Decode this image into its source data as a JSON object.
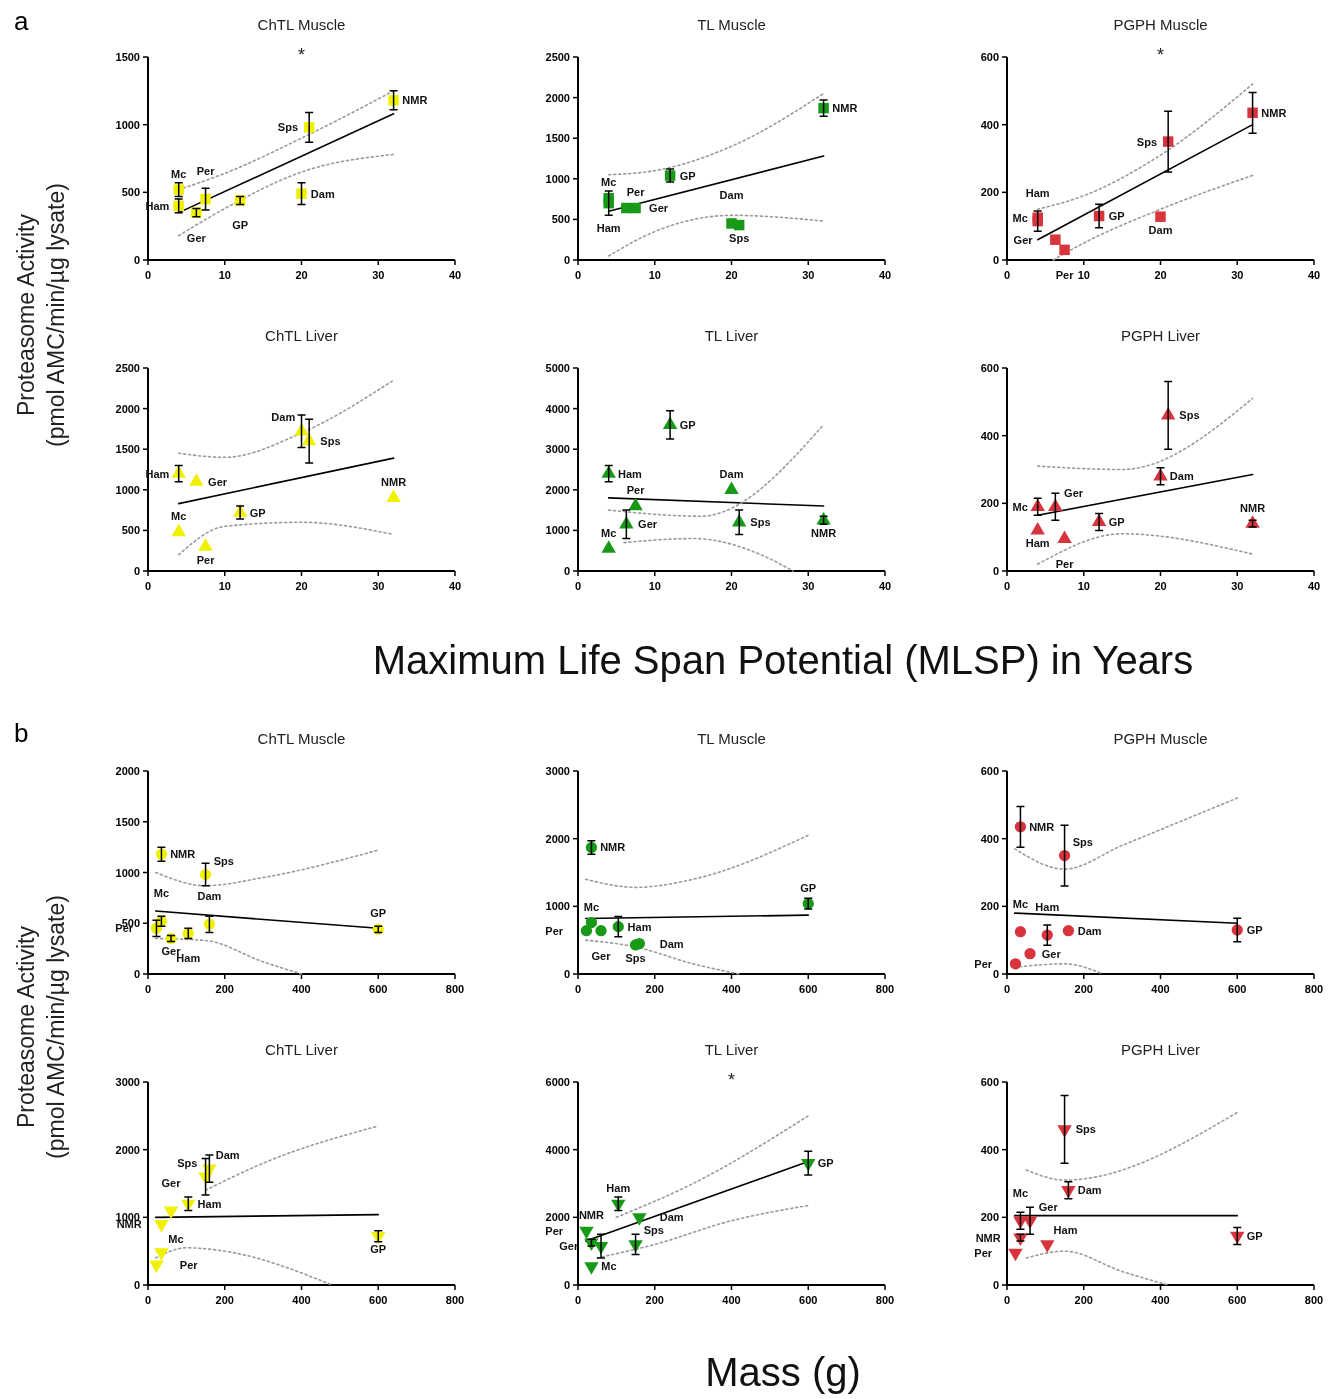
{
  "chart_data": [
    {
      "type": "other",
      "title": "a",
      "ylabel": "Proteasome Activity\n(pmol AMC/min/µg lysate)",
      "xlabel": "Maximum Life Span Potential (MLSP) in Years"
    },
    {
      "type": "scatter",
      "title": "ChTL Muscle",
      "xlim": [
        0,
        40
      ],
      "xticks": [
        0,
        10,
        20,
        30,
        40
      ],
      "ylim": [
        0,
        1500
      ],
      "yticks": [
        0,
        500,
        1000,
        1500
      ],
      "series": [
        {
          "type": "scatter",
          "marker": "square",
          "color": "#f0f000",
          "x": [
            4,
            4,
            6.3,
            7.5,
            12,
            20,
            21,
            32
          ],
          "values": [
            520,
            400,
            350,
            450,
            440,
            490,
            980,
            1180
          ],
          "errors": [
            50,
            50,
            30,
            80,
            30,
            80,
            110,
            70
          ]
        },
        {
          "type": "line",
          "color": "#000000",
          "line_style": "solid",
          "x": [
            4,
            32
          ],
          "values": [
            350,
            1080
          ]
        },
        {
          "type": "line",
          "color": "#9a9a9a",
          "line_style": "dotted",
          "x": [
            4,
            10,
            20,
            32
          ],
          "values": [
            520,
            640,
            900,
            1250
          ]
        },
        {
          "type": "line",
          "color": "#9a9a9a",
          "line_style": "dotted",
          "x": [
            4,
            10,
            20,
            32
          ],
          "values": [
            180,
            380,
            650,
            780
          ]
        }
      ],
      "annotations": [
        "*",
        {
          "text": "Mc",
          "x": 4,
          "y": 520
        },
        {
          "text": "Ham",
          "x": 4,
          "y": 400
        },
        {
          "text": "Ger",
          "x": 6.3,
          "y": 350
        },
        {
          "text": "Per",
          "x": 7.5,
          "y": 450
        },
        {
          "text": "GP",
          "x": 12,
          "y": 440
        },
        {
          "text": "Dam",
          "x": 20,
          "y": 490
        },
        {
          "text": "Sps",
          "x": 21,
          "y": 980
        },
        {
          "text": "NMR",
          "x": 32,
          "y": 1180
        }
      ]
    },
    {
      "type": "scatter",
      "title": "TL Muscle",
      "xlim": [
        0,
        40
      ],
      "xticks": [
        0,
        10,
        20,
        30,
        40
      ],
      "ylim": [
        0,
        2500
      ],
      "yticks": [
        0,
        500,
        1000,
        1500,
        2000,
        2500
      ],
      "series": [
        {
          "type": "scatter",
          "marker": "square",
          "color": "#189a18",
          "x": [
            4,
            4,
            6.3,
            7.5,
            12,
            20,
            21,
            32
          ],
          "values": [
            760,
            700,
            640,
            640,
            1040,
            450,
            430,
            1870
          ],
          "errors": [
            null,
            150,
            null,
            null,
            80,
            null,
            null,
            100
          ]
        },
        {
          "type": "line",
          "color": "#000000",
          "line_style": "solid",
          "x": [
            4,
            32
          ],
          "values": [
            600,
            1280
          ]
        },
        {
          "type": "line",
          "color": "#9a9a9a",
          "line_style": "dotted",
          "x": [
            4,
            10,
            20,
            32
          ],
          "values": [
            1050,
            1100,
            1400,
            2050
          ]
        },
        {
          "type": "line",
          "color": "#9a9a9a",
          "line_style": "dotted",
          "x": [
            4,
            10,
            20,
            32
          ],
          "values": [
            50,
            350,
            550,
            480
          ]
        }
      ],
      "annotations": [
        {
          "text": "Mc",
          "x": 4,
          "y": 760
        },
        {
          "text": "Ham",
          "x": 4,
          "y": 700
        },
        {
          "text": "Ger",
          "x": 6.3,
          "y": 640
        },
        {
          "text": "Per",
          "x": 7.5,
          "y": 640
        },
        {
          "text": "GP",
          "x": 12,
          "y": 1040
        },
        {
          "text": "Dam",
          "x": 20,
          "y": 450
        },
        {
          "text": "Sps",
          "x": 21,
          "y": 430
        },
        {
          "text": "NMR",
          "x": 32,
          "y": 1870
        }
      ]
    },
    {
      "type": "scatter",
      "title": "PGPH Muscle",
      "xlim": [
        0,
        40
      ],
      "xticks": [
        0,
        10,
        20,
        30,
        40
      ],
      "ylim": [
        0,
        600
      ],
      "yticks": [
        0,
        200,
        400,
        600
      ],
      "series": [
        {
          "type": "scatter",
          "marker": "square",
          "color": "#d8343c",
          "x": [
            4,
            4,
            6.3,
            7.5,
            12,
            20,
            21,
            32
          ],
          "values": [
            125,
            115,
            60,
            30,
            130,
            128,
            350,
            435
          ],
          "errors": [
            null,
            30,
            null,
            null,
            35,
            null,
            90,
            60
          ]
        },
        {
          "type": "line",
          "color": "#000000",
          "line_style": "solid",
          "x": [
            4,
            32
          ],
          "values": [
            60,
            400
          ]
        },
        {
          "type": "line",
          "color": "#9a9a9a",
          "line_style": "dotted",
          "x": [
            4,
            10,
            20,
            32
          ],
          "values": [
            150,
            190,
            310,
            520
          ]
        },
        {
          "type": "line",
          "color": "#9a9a9a",
          "line_style": "dotted",
          "x": [
            6,
            10,
            20,
            32
          ],
          "values": [
            0,
            50,
            150,
            250
          ]
        }
      ],
      "annotations": [
        "*",
        {
          "text": "Mc",
          "x": 4,
          "y": 125
        },
        {
          "text": "Ham",
          "x": 4,
          "y": 115
        },
        {
          "text": "Ger",
          "x": 6.3,
          "y": 60
        },
        {
          "text": "Per",
          "x": 7.5,
          "y": 30
        },
        {
          "text": "GP",
          "x": 12,
          "y": 130
        },
        {
          "text": "Dam",
          "x": 20,
          "y": 128
        },
        {
          "text": "Sps",
          "x": 21,
          "y": 350
        },
        {
          "text": "NMR",
          "x": 32,
          "y": 435
        }
      ]
    },
    {
      "type": "scatter",
      "title": "ChTL Liver",
      "xlim": [
        0,
        40
      ],
      "xticks": [
        0,
        10,
        20,
        30,
        40
      ],
      "ylim": [
        0,
        2500
      ],
      "yticks": [
        0,
        500,
        1000,
        1500,
        2000,
        2500
      ],
      "series": [
        {
          "type": "scatter",
          "marker": "triangle",
          "color": "#f0f000",
          "x": [
            4,
            4,
            6.3,
            7.5,
            12,
            20,
            21,
            32
          ],
          "values": [
            480,
            1200,
            1100,
            300,
            720,
            1720,
            1600,
            900
          ],
          "errors": [
            null,
            100,
            null,
            null,
            80,
            200,
            270,
            null
          ]
        },
        {
          "type": "line",
          "color": "#000000",
          "line_style": "solid",
          "x": [
            4,
            32
          ],
          "values": [
            830,
            1390
          ]
        },
        {
          "type": "line",
          "color": "#9a9a9a",
          "line_style": "dotted",
          "x": [
            4,
            10,
            20,
            32
          ],
          "values": [
            1450,
            1400,
            1700,
            2350
          ]
        },
        {
          "type": "line",
          "color": "#9a9a9a",
          "line_style": "dotted",
          "x": [
            4,
            10,
            20,
            32
          ],
          "values": [
            200,
            550,
            600,
            450
          ]
        }
      ],
      "annotations": [
        {
          "text": "Mc",
          "x": 4,
          "y": 480
        },
        {
          "text": "Ham",
          "x": 4,
          "y": 1200
        },
        {
          "text": "Ger",
          "x": 6.3,
          "y": 1100
        },
        {
          "text": "Per",
          "x": 7.5,
          "y": 300
        },
        {
          "text": "GP",
          "x": 12,
          "y": 720
        },
        {
          "text": "Dam",
          "x": 20,
          "y": 1720
        },
        {
          "text": "Sps",
          "x": 21,
          "y": 1600
        },
        {
          "text": "NMR",
          "x": 32,
          "y": 900
        }
      ]
    },
    {
      "type": "scatter",
      "title": "TL Liver",
      "xlim": [
        0,
        40
      ],
      "xticks": [
        0,
        10,
        20,
        30,
        40
      ],
      "ylim": [
        0,
        5000
      ],
      "yticks": [
        0,
        1000,
        2000,
        3000,
        4000,
        5000
      ],
      "series": [
        {
          "type": "scatter",
          "marker": "triangle",
          "color": "#189a18",
          "x": [
            4,
            4,
            6.3,
            7.5,
            12,
            20,
            21,
            32
          ],
          "values": [
            550,
            2400,
            1150,
            1600,
            3600,
            2000,
            1200,
            1250
          ],
          "errors": [
            null,
            200,
            350,
            null,
            350,
            null,
            300,
            100
          ]
        },
        {
          "type": "line",
          "color": "#000000",
          "line_style": "solid",
          "x": [
            4,
            32
          ],
          "values": [
            1800,
            1600
          ]
        },
        {
          "type": "line",
          "color": "#9a9a9a",
          "line_style": "dotted",
          "x": [
            4,
            16,
            32
          ],
          "values": [
            1500,
            1350,
            3600
          ]
        },
        {
          "type": "line",
          "color": "#9a9a9a",
          "line_style": "dotted",
          "x": [
            6,
            15,
            25,
            28
          ],
          "values": [
            700,
            800,
            300,
            0
          ]
        }
      ],
      "annotations": [
        {
          "text": "Mc",
          "x": 4,
          "y": 550
        },
        {
          "text": "Ham",
          "x": 4,
          "y": 2400
        },
        {
          "text": "Ger",
          "x": 6.3,
          "y": 1150
        },
        {
          "text": "Per",
          "x": 7.5,
          "y": 1600
        },
        {
          "text": "GP",
          "x": 12,
          "y": 3600
        },
        {
          "text": "Dam",
          "x": 20,
          "y": 2000
        },
        {
          "text": "Sps",
          "x": 21,
          "y": 1200
        },
        {
          "text": "NMR",
          "x": 32,
          "y": 1250
        }
      ]
    },
    {
      "type": "scatter",
      "title": "PGPH Liver",
      "xlim": [
        0,
        40
      ],
      "xticks": [
        0,
        10,
        20,
        30,
        40
      ],
      "ylim": [
        0,
        600
      ],
      "yticks": [
        0,
        200,
        400,
        600
      ],
      "series": [
        {
          "type": "scatter",
          "marker": "triangle",
          "color": "#d8343c",
          "x": [
            4,
            4,
            6.3,
            7.5,
            12,
            20,
            21,
            32
          ],
          "values": [
            190,
            120,
            190,
            95,
            145,
            280,
            460,
            140
          ],
          "errors": [
            25,
            null,
            40,
            null,
            25,
            25,
            100,
            10
          ]
        },
        {
          "type": "line",
          "color": "#000000",
          "line_style": "solid",
          "x": [
            4,
            32
          ],
          "values": [
            165,
            285
          ]
        },
        {
          "type": "line",
          "color": "#9a9a9a",
          "line_style": "dotted",
          "x": [
            4,
            15,
            32
          ],
          "values": [
            310,
            300,
            510
          ]
        },
        {
          "type": "line",
          "color": "#9a9a9a",
          "line_style": "dotted",
          "x": [
            4,
            15,
            32
          ],
          "values": [
            20,
            110,
            50
          ]
        }
      ],
      "annotations": [
        {
          "text": "Mc",
          "x": 4,
          "y": 190
        },
        {
          "text": "Ham",
          "x": 4,
          "y": 120
        },
        {
          "text": "Ger",
          "x": 6.3,
          "y": 190
        },
        {
          "text": "Per",
          "x": 7.5,
          "y": 95
        },
        {
          "text": "GP",
          "x": 12,
          "y": 145
        },
        {
          "text": "Dam",
          "x": 20,
          "y": 280
        },
        {
          "text": "Sps",
          "x": 21,
          "y": 460
        },
        {
          "text": "NMR",
          "x": 32,
          "y": 140
        }
      ]
    },
    {
      "type": "other",
      "title": "b",
      "ylabel": "Proteasome Activity\n(pmol AMC/min/µg lysate)",
      "xlabel": "Mass (g)"
    },
    {
      "type": "scatter",
      "title": "ChTL Muscle",
      "xlim": [
        0,
        800
      ],
      "xticks": [
        0,
        200,
        400,
        600,
        800
      ],
      "ylim": [
        0,
        2000
      ],
      "yticks": [
        0,
        500,
        1000,
        1500,
        2000
      ],
      "series": [
        {
          "type": "scatter",
          "marker": "circle",
          "color": "#f0f000",
          "x": [
            35,
            105,
            60,
            22,
            600,
            160,
            150,
            35
          ],
          "values": [
            520,
            400,
            350,
            450,
            440,
            490,
            980,
            1180
          ],
          "errors": [
            50,
            50,
            30,
            80,
            30,
            80,
            110,
            70
          ]
        },
        {
          "type": "line",
          "color": "#000000",
          "line_style": "solid",
          "x": [
            20,
            600
          ],
          "values": [
            620,
            450
          ]
        },
        {
          "type": "line",
          "color": "#9a9a9a",
          "line_style": "dotted",
          "x": [
            20,
            150,
            300,
            600
          ],
          "values": [
            1000,
            870,
            950,
            1220
          ]
        },
        {
          "type": "line",
          "color": "#9a9a9a",
          "line_style": "dotted",
          "x": [
            20,
            150,
            300,
            400
          ],
          "values": [
            350,
            330,
            120,
            0
          ]
        }
      ],
      "annotations": [
        {
          "text": "Mc",
          "x": 35,
          "y": 520
        },
        {
          "text": "Ham",
          "x": 105,
          "y": 400
        },
        {
          "text": "Ger",
          "x": 60,
          "y": 350
        },
        {
          "text": "Per",
          "x": 22,
          "y": 450
        },
        {
          "text": "GP",
          "x": 600,
          "y": 440
        },
        {
          "text": "Dam",
          "x": 160,
          "y": 490
        },
        {
          "text": "Sps",
          "x": 150,
          "y": 980
        },
        {
          "text": "NMR",
          "x": 35,
          "y": 1180
        }
      ]
    },
    {
      "type": "scatter",
      "title": "TL Muscle",
      "xlim": [
        0,
        800
      ],
      "xticks": [
        0,
        200,
        400,
        600,
        800
      ],
      "ylim": [
        0,
        3000
      ],
      "yticks": [
        0,
        1000,
        2000,
        3000
      ],
      "series": [
        {
          "type": "scatter",
          "marker": "circle",
          "color": "#189a18",
          "x": [
            35,
            105,
            60,
            22,
            600,
            160,
            150,
            35
          ],
          "values": [
            760,
            700,
            640,
            640,
            1040,
            450,
            430,
            1870
          ],
          "errors": [
            null,
            150,
            null,
            null,
            80,
            null,
            null,
            100
          ]
        },
        {
          "type": "line",
          "color": "#000000",
          "line_style": "solid",
          "x": [
            20,
            600
          ],
          "values": [
            820,
            870
          ]
        },
        {
          "type": "line",
          "color": "#9a9a9a",
          "line_style": "dotted",
          "x": [
            20,
            150,
            300,
            600
          ],
          "values": [
            1400,
            1280,
            1400,
            2050
          ]
        },
        {
          "type": "line",
          "color": "#9a9a9a",
          "line_style": "dotted",
          "x": [
            20,
            150,
            300,
            420
          ],
          "values": [
            500,
            400,
            150,
            0
          ]
        }
      ],
      "annotations": [
        {
          "text": "Mc",
          "x": 35,
          "y": 760
        },
        {
          "text": "Ham",
          "x": 105,
          "y": 700
        },
        {
          "text": "Ger",
          "x": 60,
          "y": 640
        },
        {
          "text": "Per",
          "x": 22,
          "y": 640
        },
        {
          "text": "GP",
          "x": 600,
          "y": 1040
        },
        {
          "text": "Dam",
          "x": 160,
          "y": 450
        },
        {
          "text": "Sps",
          "x": 150,
          "y": 430
        },
        {
          "text": "NMR",
          "x": 35,
          "y": 1870
        }
      ]
    },
    {
      "type": "scatter",
      "title": "PGPH Muscle",
      "xlim": [
        0,
        800
      ],
      "xticks": [
        0,
        200,
        400,
        600,
        800
      ],
      "ylim": [
        0,
        600
      ],
      "yticks": [
        0,
        200,
        400,
        600
      ],
      "series": [
        {
          "type": "scatter",
          "marker": "circle",
          "color": "#d8343c",
          "x": [
            35,
            105,
            60,
            22,
            600,
            160,
            150,
            35
          ],
          "values": [
            125,
            115,
            60,
            30,
            130,
            128,
            350,
            435
          ],
          "errors": [
            null,
            30,
            null,
            null,
            35,
            null,
            90,
            60
          ]
        },
        {
          "type": "line",
          "color": "#000000",
          "line_style": "solid",
          "x": [
            20,
            600
          ],
          "values": [
            180,
            150
          ]
        },
        {
          "type": "line",
          "color": "#9a9a9a",
          "line_style": "dotted",
          "x": [
            20,
            150,
            300,
            600
          ],
          "values": [
            370,
            310,
            380,
            520
          ]
        },
        {
          "type": "line",
          "color": "#9a9a9a",
          "line_style": "dotted",
          "x": [
            20,
            150,
            250
          ],
          "values": [
            20,
            30,
            0
          ]
        }
      ],
      "annotations": [
        {
          "text": "Mc",
          "x": 35,
          "y": 125
        },
        {
          "text": "Ham",
          "x": 105,
          "y": 115
        },
        {
          "text": "Ger",
          "x": 60,
          "y": 60
        },
        {
          "text": "Per",
          "x": 22,
          "y": 30
        },
        {
          "text": "GP",
          "x": 600,
          "y": 130
        },
        {
          "text": "Dam",
          "x": 160,
          "y": 128
        },
        {
          "text": "Sps",
          "x": 150,
          "y": 350
        },
        {
          "text": "NMR",
          "x": 35,
          "y": 435
        }
      ]
    },
    {
      "type": "scatter",
      "title": "ChTL Liver",
      "xlim": [
        0,
        800
      ],
      "xticks": [
        0,
        200,
        400,
        600,
        800
      ],
      "ylim": [
        0,
        3000
      ],
      "yticks": [
        0,
        1000,
        2000,
        3000
      ],
      "series": [
        {
          "type": "scatter",
          "marker": "triangle-down",
          "color": "#f0f000",
          "x": [
            35,
            105,
            60,
            22,
            600,
            160,
            150,
            35
          ],
          "values": [
            480,
            1200,
            1100,
            300,
            720,
            1720,
            1600,
            900
          ],
          "errors": [
            null,
            100,
            null,
            null,
            80,
            200,
            270,
            null
          ]
        },
        {
          "type": "line",
          "color": "#000000",
          "line_style": "solid",
          "x": [
            20,
            600
          ],
          "values": [
            1000,
            1040
          ]
        },
        {
          "type": "line",
          "color": "#9a9a9a",
          "line_style": "dotted",
          "x": [
            150,
            300,
            600
          ],
          "values": [
            1400,
            1800,
            2350
          ]
        },
        {
          "type": "line",
          "color": "#9a9a9a",
          "line_style": "dotted",
          "x": [
            20,
            100,
            200,
            480
          ],
          "values": [
            400,
            550,
            500,
            0
          ]
        }
      ],
      "annotations": [
        {
          "text": "Mc",
          "x": 35,
          "y": 480
        },
        {
          "text": "Ham",
          "x": 105,
          "y": 1200
        },
        {
          "text": "Ger",
          "x": 60,
          "y": 1100
        },
        {
          "text": "Per",
          "x": 22,
          "y": 300
        },
        {
          "text": "GP",
          "x": 600,
          "y": 720
        },
        {
          "text": "Dam",
          "x": 160,
          "y": 1720
        },
        {
          "text": "Sps",
          "x": 150,
          "y": 1600
        },
        {
          "text": "NMR",
          "x": 35,
          "y": 900
        }
      ]
    },
    {
      "type": "scatter",
      "title": "TL Liver",
      "xlim": [
        0,
        800
      ],
      "xticks": [
        0,
        200,
        400,
        600,
        800
      ],
      "ylim": [
        0,
        6000
      ],
      "yticks": [
        0,
        2000,
        4000,
        6000
      ],
      "series": [
        {
          "type": "scatter",
          "marker": "triangle-down",
          "color": "#189a18",
          "x": [
            35,
            105,
            60,
            22,
            600,
            160,
            150,
            35
          ],
          "values": [
            550,
            2400,
            1150,
            1600,
            3600,
            2000,
            1200,
            1250
          ],
          "errors": [
            null,
            200,
            350,
            null,
            350,
            null,
            300,
            100
          ]
        },
        {
          "type": "line",
          "color": "#000000",
          "line_style": "solid",
          "x": [
            20,
            600
          ],
          "values": [
            1300,
            3650
          ]
        },
        {
          "type": "line",
          "color": "#9a9a9a",
          "line_style": "dotted",
          "x": [
            100,
            300,
            600
          ],
          "values": [
            2000,
            3000,
            5000
          ]
        },
        {
          "type": "line",
          "color": "#9a9a9a",
          "line_style": "dotted",
          "x": [
            50,
            200,
            400,
            600
          ],
          "values": [
            800,
            1200,
            1900,
            2350
          ]
        }
      ],
      "annotations": [
        "*",
        {
          "text": "Mc",
          "x": 35,
          "y": 550
        },
        {
          "text": "Ham",
          "x": 105,
          "y": 2400
        },
        {
          "text": "Ger",
          "x": 60,
          "y": 1150
        },
        {
          "text": "Per",
          "x": 22,
          "y": 1600
        },
        {
          "text": "GP",
          "x": 600,
          "y": 3600
        },
        {
          "text": "Dam",
          "x": 160,
          "y": 2000
        },
        {
          "text": "Sps",
          "x": 150,
          "y": 1200
        },
        {
          "text": "NMR",
          "x": 35,
          "y": 1250
        }
      ]
    },
    {
      "type": "scatter",
      "title": "PGPH Liver",
      "xlim": [
        0,
        800
      ],
      "xticks": [
        0,
        200,
        400,
        600,
        800
      ],
      "ylim": [
        0,
        600
      ],
      "yticks": [
        0,
        200,
        400,
        600
      ],
      "series": [
        {
          "type": "scatter",
          "marker": "triangle-down",
          "color": "#d8343c",
          "x": [
            35,
            105,
            60,
            22,
            600,
            160,
            150,
            35
          ],
          "values": [
            190,
            120,
            190,
            95,
            145,
            280,
            460,
            140
          ],
          "errors": [
            25,
            null,
            40,
            null,
            25,
            25,
            100,
            10
          ]
        },
        {
          "type": "line",
          "color": "#000000",
          "line_style": "solid",
          "x": [
            20,
            600
          ],
          "values": [
            205,
            205
          ]
        },
        {
          "type": "line",
          "color": "#9a9a9a",
          "line_style": "dotted",
          "x": [
            50,
            150,
            600
          ],
          "values": [
            340,
            310,
            510
          ]
        },
        {
          "type": "line",
          "color": "#9a9a9a",
          "line_style": "dotted",
          "x": [
            50,
            150,
            300,
            420
          ],
          "values": [
            80,
            100,
            40,
            0
          ]
        }
      ],
      "annotations": [
        {
          "text": "Mc",
          "x": 35,
          "y": 190
        },
        {
          "text": "Ham",
          "x": 105,
          "y": 120
        },
        {
          "text": "Ger",
          "x": 60,
          "y": 190
        },
        {
          "text": "Per",
          "x": 22,
          "y": 95
        },
        {
          "text": "GP",
          "x": 600,
          "y": 145
        },
        {
          "text": "Dam",
          "x": 160,
          "y": 280
        },
        {
          "text": "Sps",
          "x": 150,
          "y": 460
        },
        {
          "text": "NMR",
          "x": 35,
          "y": 140
        }
      ]
    }
  ]
}
